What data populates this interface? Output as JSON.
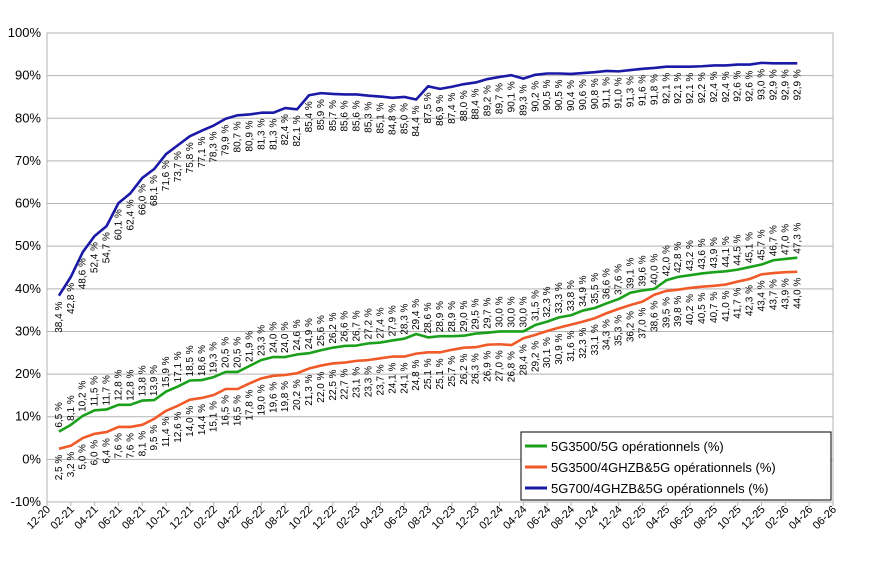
{
  "chart_data": {
    "type": "line",
    "title": "",
    "xlabel": "",
    "ylabel": "",
    "ylim": [
      -10,
      100
    ],
    "yticks": [
      "-10%",
      "0%",
      "10%",
      "20%",
      "30%",
      "40%",
      "50%",
      "60%",
      "70%",
      "80%",
      "90%",
      "100%"
    ],
    "grid": "horizontal",
    "legend_position": "bottom-right",
    "x_ticks": [
      "12-20",
      "02-21",
      "04-21",
      "06-21",
      "08-21",
      "10-21",
      "12-21",
      "02-22",
      "04-22",
      "06-22",
      "08-22",
      "10-22",
      "12-22",
      "02-23",
      "04-23",
      "06-23",
      "08-23",
      "10-23",
      "12-23",
      "02-24",
      "04-24",
      "06-24",
      "08-24",
      "10-24",
      "12-24",
      "02-25",
      "04-25",
      "06-25",
      "08-25",
      "10-25",
      "12-25",
      "02-26",
      "04-26",
      "06-26"
    ],
    "x_months_from_first_tick": [
      1,
      2,
      3,
      4,
      5,
      6,
      7,
      8,
      9,
      10,
      11,
      12,
      13,
      14,
      15,
      16,
      17,
      18,
      19,
      20,
      21,
      22,
      23,
      24,
      25,
      26,
      27,
      28,
      29,
      30,
      31,
      32,
      33,
      34,
      35,
      36,
      37,
      38,
      39,
      40,
      41,
      42,
      43,
      44,
      45,
      46,
      47,
      48,
      49,
      50,
      51,
      52,
      53,
      54,
      55,
      56,
      57,
      58,
      59,
      60,
      61,
      62,
      63
    ],
    "series": [
      {
        "name": "5G3500/5G opérationnels (%)",
        "color": "#1aa01a",
        "label_side": "above",
        "labels": [
          "6,5 %",
          "8,1 %",
          "10,2 %",
          "11,5 %",
          "11,7 %",
          "12,8 %",
          "12,8 %",
          "13,8 %",
          "13,9 %",
          "15,9 %",
          "17,1 %",
          "18,5 %",
          "18,6 %",
          "19,3 %",
          "20,5 %",
          "20,5 %",
          "21,9 %",
          "23,3 %",
          "24,0 %",
          "24,0 %",
          "24,6 %",
          "24,9 %",
          "25,6 %",
          "26,2 %",
          "26,6 %",
          "26,7 %",
          "27,2 %",
          "27,4 %",
          "27,9 %",
          "28,3 %",
          "29,4 %",
          "28,6 %",
          "28,9 %",
          "28,9 %",
          "29,0 %",
          "29,5 %",
          "29,7 %",
          "30,0 %",
          "30,0 %",
          "30,0 %",
          "31,5 %",
          "32,3 %",
          "33,3 %",
          "33,8 %",
          "34,9 %",
          "35,5 %",
          "36,6 %",
          "37,6 %",
          "39,1 %",
          "39,6 %",
          "40,0 %",
          "42,0 %",
          "42,8 %",
          "43,2 %",
          "43,6 %",
          "43,9 %",
          "44,1 %",
          "44,5 %",
          "45,1 %",
          "45,7 %",
          "46,7 %",
          "47,0 %",
          "47,3 %"
        ],
        "values": [
          6.5,
          8.1,
          10.2,
          11.5,
          11.7,
          12.8,
          12.8,
          13.8,
          13.9,
          15.9,
          17.1,
          18.5,
          18.6,
          19.3,
          20.5,
          20.5,
          21.9,
          23.3,
          24.0,
          24.0,
          24.6,
          24.9,
          25.6,
          26.2,
          26.6,
          26.7,
          27.2,
          27.4,
          27.9,
          28.3,
          29.4,
          28.6,
          28.9,
          28.9,
          29.0,
          29.5,
          29.7,
          30.0,
          30.0,
          30.0,
          31.5,
          32.3,
          33.3,
          33.8,
          34.9,
          35.5,
          36.6,
          37.6,
          39.1,
          39.6,
          40.0,
          42.0,
          42.8,
          43.2,
          43.6,
          43.9,
          44.1,
          44.5,
          45.1,
          45.7,
          46.7,
          47.0,
          47.3
        ]
      },
      {
        "name": "5G3500/4GHZB&5G opérationnels (%)",
        "color": "#f05a28",
        "label_side": "below",
        "labels": [
          "2,5 %",
          "3,2 %",
          "5,0 %",
          "6,0 %",
          "6,4 %",
          "7,6 %",
          "7,6 %",
          "8,1 %",
          "9,5 %",
          "11,4 %",
          "12,6 %",
          "14,0 %",
          "14,4 %",
          "15,1 %",
          "16,5 %",
          "16,5 %",
          "17,8 %",
          "19,0 %",
          "19,6 %",
          "19,8 %",
          "20,2 %",
          "21,3 %",
          "22,0 %",
          "22,5 %",
          "22,7 %",
          "23,1 %",
          "23,3 %",
          "23,7 %",
          "24,1 %",
          "24,1 %",
          "24,8 %",
          "25,1 %",
          "25,1 %",
          "25,7 %",
          "26,2 %",
          "26,3 %",
          "26,9 %",
          "27,0 %",
          "26,8 %",
          "28,4 %",
          "29,2 %",
          "30,1 %",
          "30,9 %",
          "31,6 %",
          "32,3 %",
          "33,1 %",
          "34,3 %",
          "35,3 %",
          "36,2 %",
          "37,0 %",
          "38,6 %",
          "39,5 %",
          "39,8 %",
          "40,2 %",
          "40,5 %",
          "40,7 %",
          "41,0 %",
          "41,7 %",
          "42,3 %",
          "43,4 %",
          "43,7 %",
          "43,9 %",
          "44,0 %"
        ],
        "values": [
          2.5,
          3.2,
          5.0,
          6.0,
          6.4,
          7.6,
          7.6,
          8.1,
          9.5,
          11.4,
          12.6,
          14.0,
          14.4,
          15.1,
          16.5,
          16.5,
          17.8,
          19.0,
          19.6,
          19.8,
          20.2,
          21.3,
          22.0,
          22.5,
          22.7,
          23.1,
          23.3,
          23.7,
          24.1,
          24.1,
          24.8,
          25.1,
          25.1,
          25.7,
          26.2,
          26.3,
          26.9,
          27.0,
          26.8,
          28.4,
          29.2,
          30.1,
          30.9,
          31.6,
          32.3,
          33.1,
          34.3,
          35.3,
          36.2,
          37.0,
          38.6,
          39.5,
          39.8,
          40.2,
          40.5,
          40.7,
          41.0,
          41.7,
          42.3,
          43.4,
          43.7,
          43.9,
          44.0
        ]
      },
      {
        "name": "5G700/4GHZB&5G opérationnels (%)",
        "color": "#1a1aa6",
        "label_side": "below",
        "labels": [
          "38,4 %",
          "42,8 %",
          "48,6 %",
          "52,4 %",
          "54,7 %",
          "60,1 %",
          "62,4 %",
          "66,0 %",
          "68,1 %",
          "71,6 %",
          "73,7 %",
          "75,8 %",
          "77,1 %",
          "78,3 %",
          "79,9 %",
          "80,7 %",
          "80,9 %",
          "81,3 %",
          "81,3 %",
          "82,4 %",
          "82,1 %",
          "85,4 %",
          "85,9 %",
          "85,7 %",
          "85,6 %",
          "85,6 %",
          "85,3 %",
          "85,1 %",
          "84,8 %",
          "85,0 %",
          "84,4 %",
          "87,5 %",
          "86,9 %",
          "87,4 %",
          "88,0 %",
          "88,4 %",
          "89,2 %",
          "89,7 %",
          "90,1 %",
          "89,3 %",
          "90,2 %",
          "90,5 %",
          "90,5 %",
          "90,4 %",
          "90,6 %",
          "90,8 %",
          "91,1 %",
          "91,0 %",
          "91,3 %",
          "91,6 %",
          "91,8 %",
          "92,1 %",
          "92,1 %",
          "92,1 %",
          "92,2 %",
          "92,4 %",
          "92,4 %",
          "92,6 %",
          "92,6 %",
          "93,0 %",
          "92,9 %",
          "92,9 %",
          "92,9 %"
        ],
        "values": [
          38.4,
          42.8,
          48.6,
          52.4,
          54.7,
          60.1,
          62.4,
          66.0,
          68.1,
          71.6,
          73.7,
          75.8,
          77.1,
          78.3,
          79.9,
          80.7,
          80.9,
          81.3,
          81.3,
          82.4,
          82.1,
          85.4,
          85.9,
          85.7,
          85.6,
          85.6,
          85.3,
          85.1,
          84.8,
          85.0,
          84.4,
          87.5,
          86.9,
          87.4,
          88.0,
          88.4,
          89.2,
          89.7,
          90.1,
          89.3,
          90.2,
          90.5,
          90.5,
          90.4,
          90.6,
          90.8,
          91.1,
          91.0,
          91.3,
          91.6,
          91.8,
          92.1,
          92.1,
          92.1,
          92.2,
          92.4,
          92.4,
          92.6,
          92.6,
          93.0,
          92.9,
          92.9,
          92.9
        ]
      }
    ]
  }
}
